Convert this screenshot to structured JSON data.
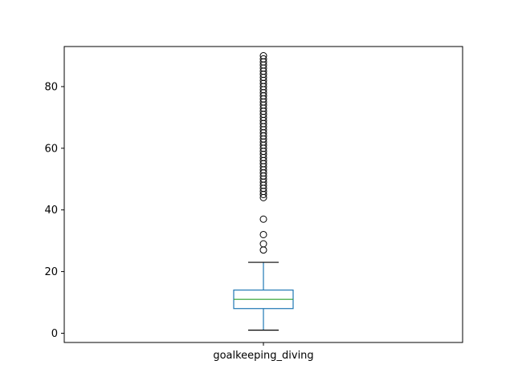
{
  "chart_data": {
    "type": "boxplot",
    "title": "",
    "xlabel": "",
    "ylabel": "",
    "ylim": [
      -3,
      93
    ],
    "yticks": [
      0,
      20,
      40,
      60,
      80
    ],
    "categories": [
      "goalkeeping_diving"
    ],
    "box": {
      "whisker_low": 1,
      "q1": 8,
      "median": 11,
      "q3": 14,
      "whisker_high": 23
    },
    "outliers": [
      27,
      29,
      32,
      37,
      44,
      45,
      46,
      47,
      48,
      49,
      50,
      51,
      52,
      53,
      54,
      55,
      56,
      57,
      58,
      59,
      60,
      61,
      62,
      63,
      64,
      65,
      66,
      67,
      68,
      69,
      70,
      71,
      72,
      73,
      74,
      75,
      76,
      77,
      78,
      79,
      80,
      81,
      82,
      83,
      84,
      85,
      86,
      87,
      88,
      89,
      90
    ],
    "grid": false,
    "colors": {
      "box": "#1f77b4",
      "median": "#2ca02c",
      "whisker": "#1f77b4",
      "cap": "#000000",
      "outlier": "#000000",
      "axes": "#000000"
    }
  }
}
